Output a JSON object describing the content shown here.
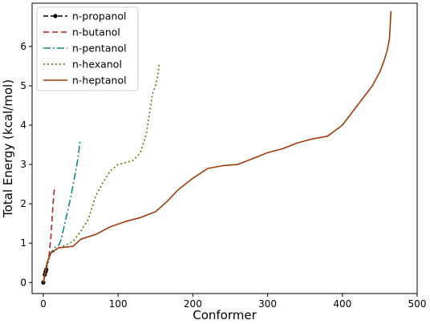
{
  "chart_data": {
    "type": "line",
    "title": "",
    "xlabel": "Conformer",
    "ylabel": "Total Energy (kcal/mol)",
    "xlim": [
      -15,
      500
    ],
    "ylim": [
      -0.28,
      7.1
    ],
    "xticks": [
      0,
      100,
      200,
      300,
      400,
      500
    ],
    "yticks": [
      0,
      1,
      2,
      3,
      4,
      5,
      6
    ],
    "grid": false,
    "legend_position": "top-left",
    "series": [
      {
        "name": "n-propanol",
        "color": "#000000",
        "dash": "6,3",
        "marker": true,
        "points": [
          [
            0,
            0.0
          ],
          [
            2,
            0.2
          ],
          [
            3,
            0.27
          ],
          [
            4,
            0.33
          ]
        ]
      },
      {
        "name": "n-butanol",
        "color": "#b22222",
        "dash": "7,4",
        "marker": false,
        "points": [
          [
            0,
            0.0
          ],
          [
            2,
            0.2
          ],
          [
            4,
            0.4
          ],
          [
            6,
            0.55
          ],
          [
            8,
            0.72
          ],
          [
            9,
            0.95
          ],
          [
            10,
            1.1
          ],
          [
            11,
            1.4
          ],
          [
            12,
            1.7
          ],
          [
            13,
            2.0
          ],
          [
            14,
            2.2
          ],
          [
            15,
            2.45
          ]
        ]
      },
      {
        "name": "n-pentanol",
        "color": "#148585",
        "dash": "9,3,2,3",
        "marker": false,
        "points": [
          [
            0,
            0.0
          ],
          [
            3,
            0.3
          ],
          [
            6,
            0.55
          ],
          [
            9,
            0.72
          ],
          [
            12,
            0.8
          ],
          [
            15,
            0.88
          ],
          [
            18,
            0.92
          ],
          [
            21,
            0.96
          ],
          [
            24,
            1.1
          ],
          [
            27,
            1.35
          ],
          [
            30,
            1.6
          ],
          [
            33,
            1.85
          ],
          [
            36,
            2.1
          ],
          [
            39,
            2.4
          ],
          [
            42,
            2.7
          ],
          [
            45,
            3.0
          ],
          [
            47,
            3.25
          ],
          [
            49,
            3.58
          ]
        ]
      },
      {
        "name": "n-hexanol",
        "color": "#4f7a0f",
        "dash": "2,3",
        "marker": false,
        "points": [
          [
            0,
            0.0
          ],
          [
            5,
            0.4
          ],
          [
            10,
            0.72
          ],
          [
            20,
            0.88
          ],
          [
            30,
            0.95
          ],
          [
            40,
            1.05
          ],
          [
            50,
            1.3
          ],
          [
            60,
            1.6
          ],
          [
            65,
            1.9
          ],
          [
            70,
            2.2
          ],
          [
            80,
            2.55
          ],
          [
            90,
            2.85
          ],
          [
            100,
            3.0
          ],
          [
            110,
            3.05
          ],
          [
            120,
            3.1
          ],
          [
            130,
            3.3
          ],
          [
            138,
            3.8
          ],
          [
            142,
            4.3
          ],
          [
            146,
            4.8
          ],
          [
            150,
            5.0
          ],
          [
            153,
            5.25
          ],
          [
            155,
            5.55
          ]
        ]
      },
      {
        "name": "n-heptanol",
        "color": "#a33a0e",
        "dash": "",
        "marker": false,
        "points": [
          [
            0,
            0.0
          ],
          [
            5,
            0.5
          ],
          [
            10,
            0.75
          ],
          [
            20,
            0.88
          ],
          [
            40,
            0.92
          ],
          [
            50,
            1.1
          ],
          [
            70,
            1.22
          ],
          [
            90,
            1.42
          ],
          [
            110,
            1.55
          ],
          [
            130,
            1.65
          ],
          [
            150,
            1.8
          ],
          [
            165,
            2.05
          ],
          [
            180,
            2.35
          ],
          [
            200,
            2.65
          ],
          [
            220,
            2.9
          ],
          [
            240,
            2.97
          ],
          [
            260,
            3.0
          ],
          [
            280,
            3.15
          ],
          [
            300,
            3.3
          ],
          [
            320,
            3.4
          ],
          [
            340,
            3.55
          ],
          [
            360,
            3.65
          ],
          [
            380,
            3.72
          ],
          [
            400,
            4.0
          ],
          [
            420,
            4.5
          ],
          [
            430,
            4.75
          ],
          [
            440,
            5.0
          ],
          [
            450,
            5.35
          ],
          [
            455,
            5.6
          ],
          [
            460,
            5.9
          ],
          [
            463,
            6.2
          ],
          [
            465,
            6.9
          ]
        ]
      }
    ]
  }
}
